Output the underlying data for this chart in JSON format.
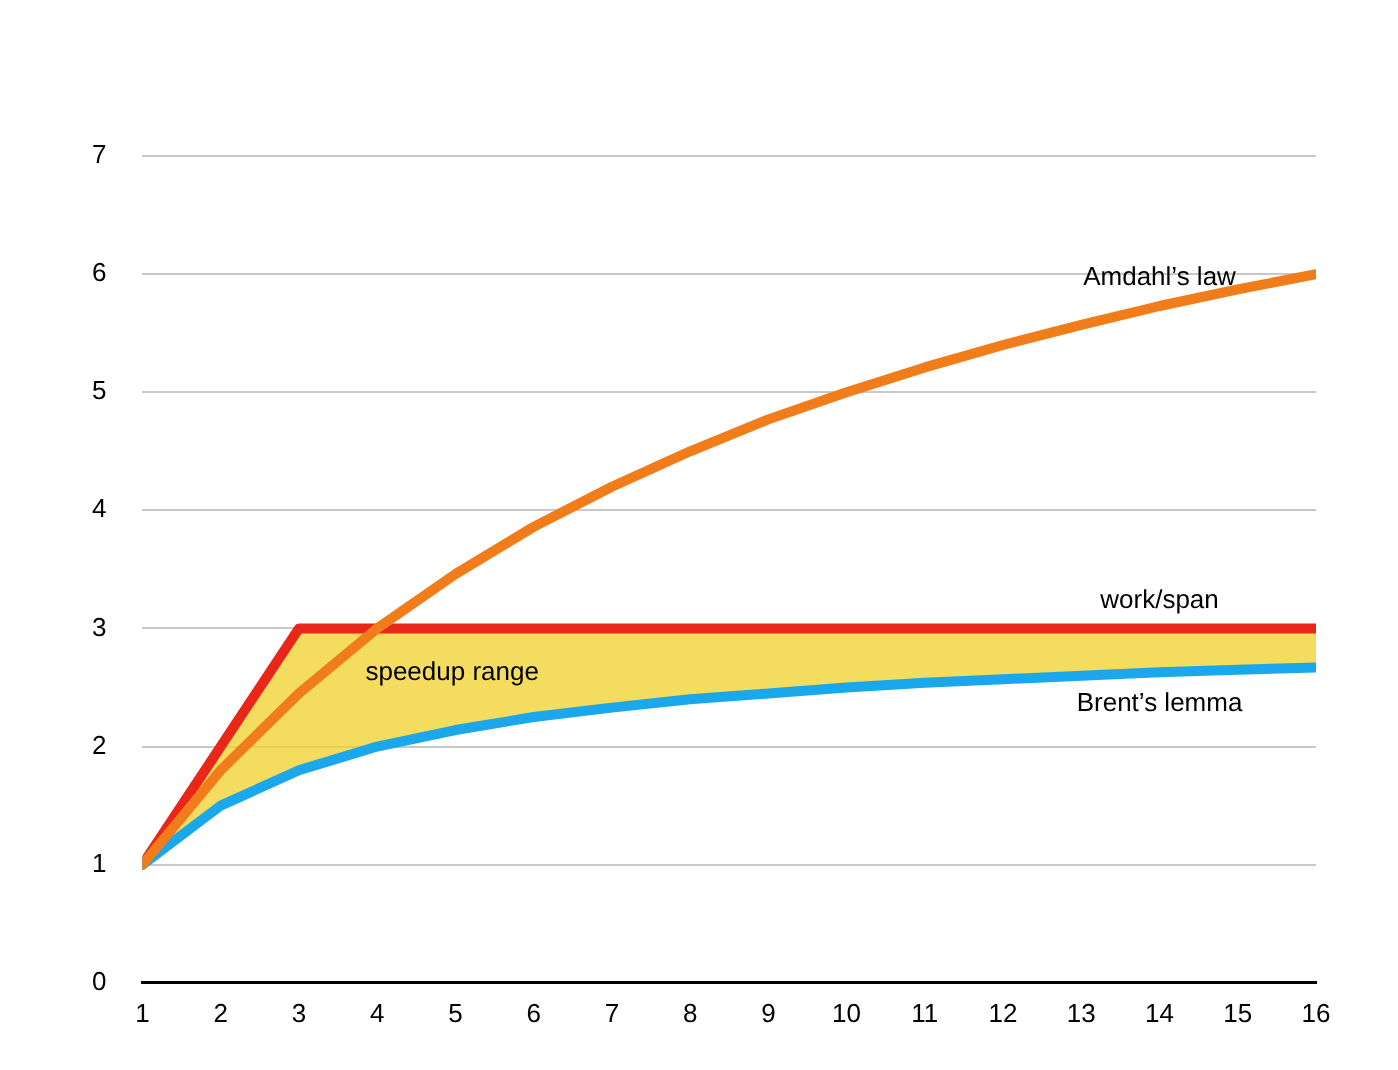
{
  "chart_data": {
    "type": "line",
    "x": [
      1,
      2,
      3,
      4,
      5,
      6,
      7,
      8,
      9,
      10,
      11,
      12,
      13,
      14,
      15,
      16
    ],
    "series": [
      {
        "name": "work/span",
        "color": "#e8261a",
        "values": [
          1,
          2,
          3,
          3,
          3,
          3,
          3,
          3,
          3,
          3,
          3,
          3,
          3,
          3,
          3,
          3
        ]
      },
      {
        "name": "Brent’s lemma",
        "color": "#1aa7ec",
        "values": [
          1,
          1.5,
          1.8,
          2,
          2.14,
          2.25,
          2.33,
          2.4,
          2.45,
          2.5,
          2.54,
          2.57,
          2.6,
          2.63,
          2.65,
          2.67
        ]
      },
      {
        "name": "Amdahl’s law",
        "color": "#f07d1a",
        "values": [
          1,
          1.8,
          2.45,
          3,
          3.46,
          3.86,
          4.2,
          4.5,
          4.77,
          5,
          5.21,
          5.4,
          5.57,
          5.73,
          5.87,
          6
        ]
      }
    ],
    "annotations": [
      "speedup range"
    ],
    "xlim": [
      1,
      16
    ],
    "xticks": [
      1,
      2,
      3,
      4,
      5,
      6,
      7,
      8,
      9,
      10,
      11,
      12,
      13,
      14,
      15,
      16
    ],
    "ylim": [
      0,
      7
    ],
    "yticks": [
      0,
      1,
      2,
      3,
      4,
      5,
      6,
      7
    ],
    "grid": "y",
    "legend": false,
    "marker": "none",
    "line_style": "solid"
  }
}
